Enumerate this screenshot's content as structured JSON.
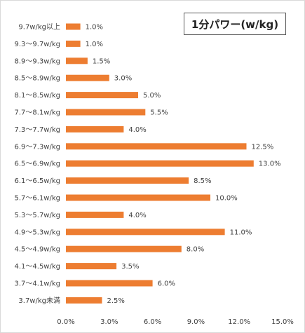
{
  "chart_data": {
    "type": "bar",
    "orientation": "horizontal",
    "title": "1分パワー(w/kg)",
    "categories": [
      "9.7w/kg以上",
      "9.3～9.7w/kg",
      "8.9～9.3w/kg",
      "8.5～8.9w/kg",
      "8.1～8.5w/kg",
      "7.7～8.1w/kg",
      "7.3～7.7w/kg",
      "6.9～7.3w/kg",
      "6.5～6.9w/kg",
      "6.1～6.5w/kg",
      "5.7～6.1w/kg",
      "5.3～5.7w/kg",
      "4.9～5.3w/kg",
      "4.5～4.9w/kg",
      "4.1～4.5w/kg",
      "3.7～4.1w/kg",
      "3.7w/kg未満"
    ],
    "values": [
      1.0,
      1.0,
      1.5,
      3.0,
      5.0,
      5.5,
      4.0,
      12.5,
      13.0,
      8.5,
      10.0,
      4.0,
      11.0,
      8.0,
      3.5,
      6.0,
      2.5
    ],
    "value_labels": [
      "1.0%",
      "1.0%",
      "1.5%",
      "3.0%",
      "5.0%",
      "5.5%",
      "4.0%",
      "12.5%",
      "13.0%",
      "8.5%",
      "10.0%",
      "4.0%",
      "11.0%",
      "8.0%",
      "3.5%",
      "6.0%",
      "2.5%"
    ],
    "xlim": [
      0,
      15
    ],
    "x_ticks": [
      "0.0%",
      "3.0%",
      "6.0%",
      "9.0%",
      "12.0%",
      "15.0%"
    ],
    "bar_color": "#ed7d31",
    "grid": false,
    "legend": "none"
  }
}
